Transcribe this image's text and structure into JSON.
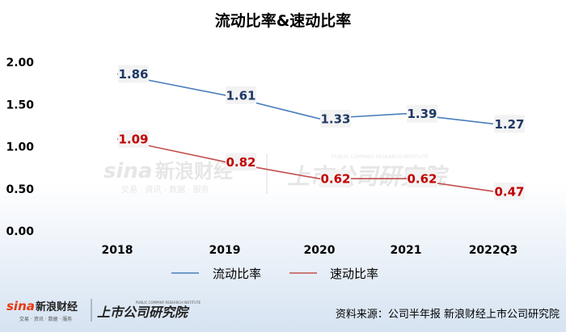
{
  "chart_data": {
    "type": "line",
    "title": "流动比率&速动比率",
    "categories": [
      "2018",
      "2019",
      "2020",
      "2021",
      "2022Q3"
    ],
    "series": [
      {
        "name": "流动比率",
        "values": [
          1.86,
          1.61,
          1.33,
          1.39,
          1.27
        ],
        "color": "#4a7ebb",
        "label_color": "#1f3864"
      },
      {
        "name": "速动比率",
        "values": [
          1.09,
          0.82,
          0.62,
          0.62,
          0.47
        ],
        "color": "#c0504d",
        "label_color": "#c00000"
      }
    ],
    "yticks": [
      "0.00",
      "0.50",
      "1.00",
      "1.50",
      "2.00"
    ],
    "ylim": [
      0,
      2.0
    ],
    "grid": false,
    "legend_position": "bottom"
  },
  "watermark": {
    "brand_en": "sina",
    "brand_cn": "新浪财经",
    "tagline": "交易 · 资讯 · 数据 · 服务",
    "institute": "上市公司研究院",
    "institute_en": "PUBLIC COMPANY RESEARCH INSTITUTE"
  },
  "footer": {
    "brand_en": "sina",
    "brand_cn": "新浪财经",
    "tagline": "交易 · 资讯 · 数据 · 服务",
    "institute": "上市公司研究院",
    "institute_en": "PUBLIC COMPANY RESEARCH INSTITUTE",
    "source": "资料来源：公司半年报 新浪财经上市公司研究院"
  },
  "colors": {
    "background_top": "#ffffff",
    "background_bottom": "#dbe6f3",
    "axis_text": "#000000"
  }
}
